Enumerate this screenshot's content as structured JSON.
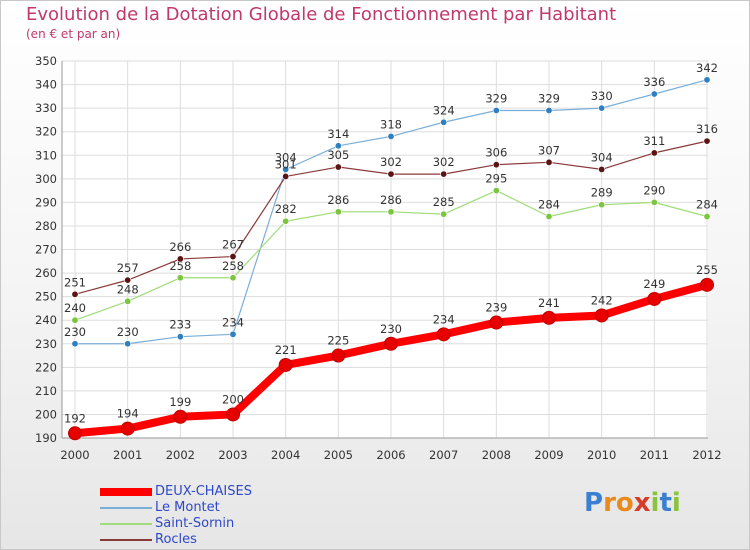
{
  "chart_data": {
    "type": "line",
    "title": "Evolution de la Dotation Globale de Fonctionnement par Habitant",
    "subtitle": "(en € et par an)",
    "xlabel": "",
    "ylabel": "",
    "ylim": [
      190,
      350
    ],
    "ytick_step": 10,
    "grid": true,
    "legend_position": "bottom-left",
    "categories": [
      "2000",
      "2001",
      "2002",
      "2003",
      "2004",
      "2005",
      "2006",
      "2007",
      "2008",
      "2009",
      "2010",
      "2011",
      "2012"
    ],
    "series": [
      {
        "name": "Le Montet",
        "color": "#7aaed8",
        "marker": "#2f7fc1",
        "width": 1.2,
        "values": [
          230,
          230,
          233,
          234,
          304,
          314,
          318,
          324,
          329,
          329,
          330,
          336,
          342
        ]
      },
      {
        "name": "Saint-Sornin",
        "color": "#9fdc7a",
        "marker": "#7cc63f",
        "width": 1.2,
        "values": [
          240,
          248,
          258,
          258,
          282,
          286,
          286,
          285,
          295,
          284,
          289,
          290,
          284
        ]
      },
      {
        "name": "Rocles",
        "color": "#8a3a3a",
        "marker": "#5a1414",
        "width": 1.2,
        "values": [
          251,
          257,
          266,
          267,
          301,
          305,
          302,
          302,
          306,
          307,
          304,
          311,
          316
        ]
      },
      {
        "name": "DEUX-CHAISES",
        "color": "#ff0000",
        "marker": "#e60000",
        "width": 8,
        "values": [
          192,
          194,
          199,
          200,
          221,
          225,
          230,
          234,
          239,
          241,
          242,
          249,
          255
        ]
      }
    ]
  },
  "legend": {
    "items": [
      {
        "label": "DEUX-CHAISES",
        "color": "#ff0000",
        "width": 8
      },
      {
        "label": "Le Montet",
        "color": "#7aaed8",
        "width": 2
      },
      {
        "label": "Saint-Sornin",
        "color": "#9fdc7a",
        "width": 2
      },
      {
        "label": "Rocles",
        "color": "#8a3a3a",
        "width": 2
      }
    ]
  },
  "brand": {
    "letters": [
      "P",
      "r",
      "o",
      "x",
      "i",
      "t",
      "i"
    ],
    "colors": [
      "#3b7fd1",
      "#e98a1f",
      "#e98a1f",
      "#d63b2a",
      "#8ac43f",
      "#3b7fd1",
      "#8ac43f"
    ]
  }
}
